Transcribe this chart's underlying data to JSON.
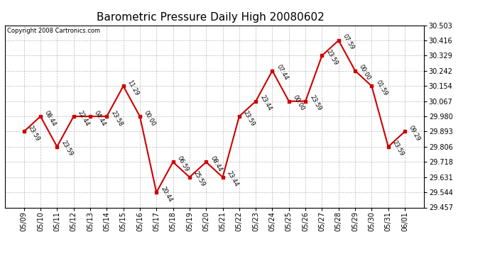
{
  "title": "Barometric Pressure Daily High 20080602",
  "copyright": "Copyright 2008 Cartronics.com",
  "dates": [
    "05/09",
    "05/10",
    "05/11",
    "05/12",
    "05/13",
    "05/14",
    "05/15",
    "05/16",
    "05/17",
    "05/18",
    "05/19",
    "05/20",
    "05/21",
    "05/22",
    "05/23",
    "05/24",
    "05/25",
    "05/26",
    "05/27",
    "05/28",
    "05/29",
    "05/30",
    "05/31",
    "06/01"
  ],
  "values": [
    29.893,
    29.98,
    29.806,
    29.98,
    29.98,
    29.98,
    30.154,
    29.98,
    29.544,
    29.718,
    29.631,
    29.718,
    29.631,
    29.98,
    30.067,
    30.242,
    30.067,
    30.067,
    30.329,
    30.416,
    30.242,
    30.154,
    29.806,
    29.893
  ],
  "times": [
    "23:59",
    "08:44",
    "23:59",
    "22:44",
    "04:44",
    "23:58",
    "11:29",
    "00:00",
    "20:44",
    "06:59",
    "25:59",
    "08:44",
    "23:44",
    "23:59",
    "23:44",
    "07:44",
    "00:00",
    "23:59",
    "23:59",
    "07:59",
    "00:00",
    "01:59",
    "23:59",
    "09:29"
  ],
  "ylim": [
    29.457,
    30.503
  ],
  "yticks": [
    29.457,
    29.544,
    29.631,
    29.718,
    29.806,
    29.893,
    29.98,
    30.067,
    30.154,
    30.242,
    30.329,
    30.416,
    30.503
  ],
  "line_color": "#cc0000",
  "marker_color": "#cc0000",
  "bg_color": "#ffffff",
  "grid_color": "#bbbbbb",
  "title_fontsize": 11,
  "copyright_fontsize": 6,
  "label_fontsize": 6,
  "tick_fontsize": 7
}
